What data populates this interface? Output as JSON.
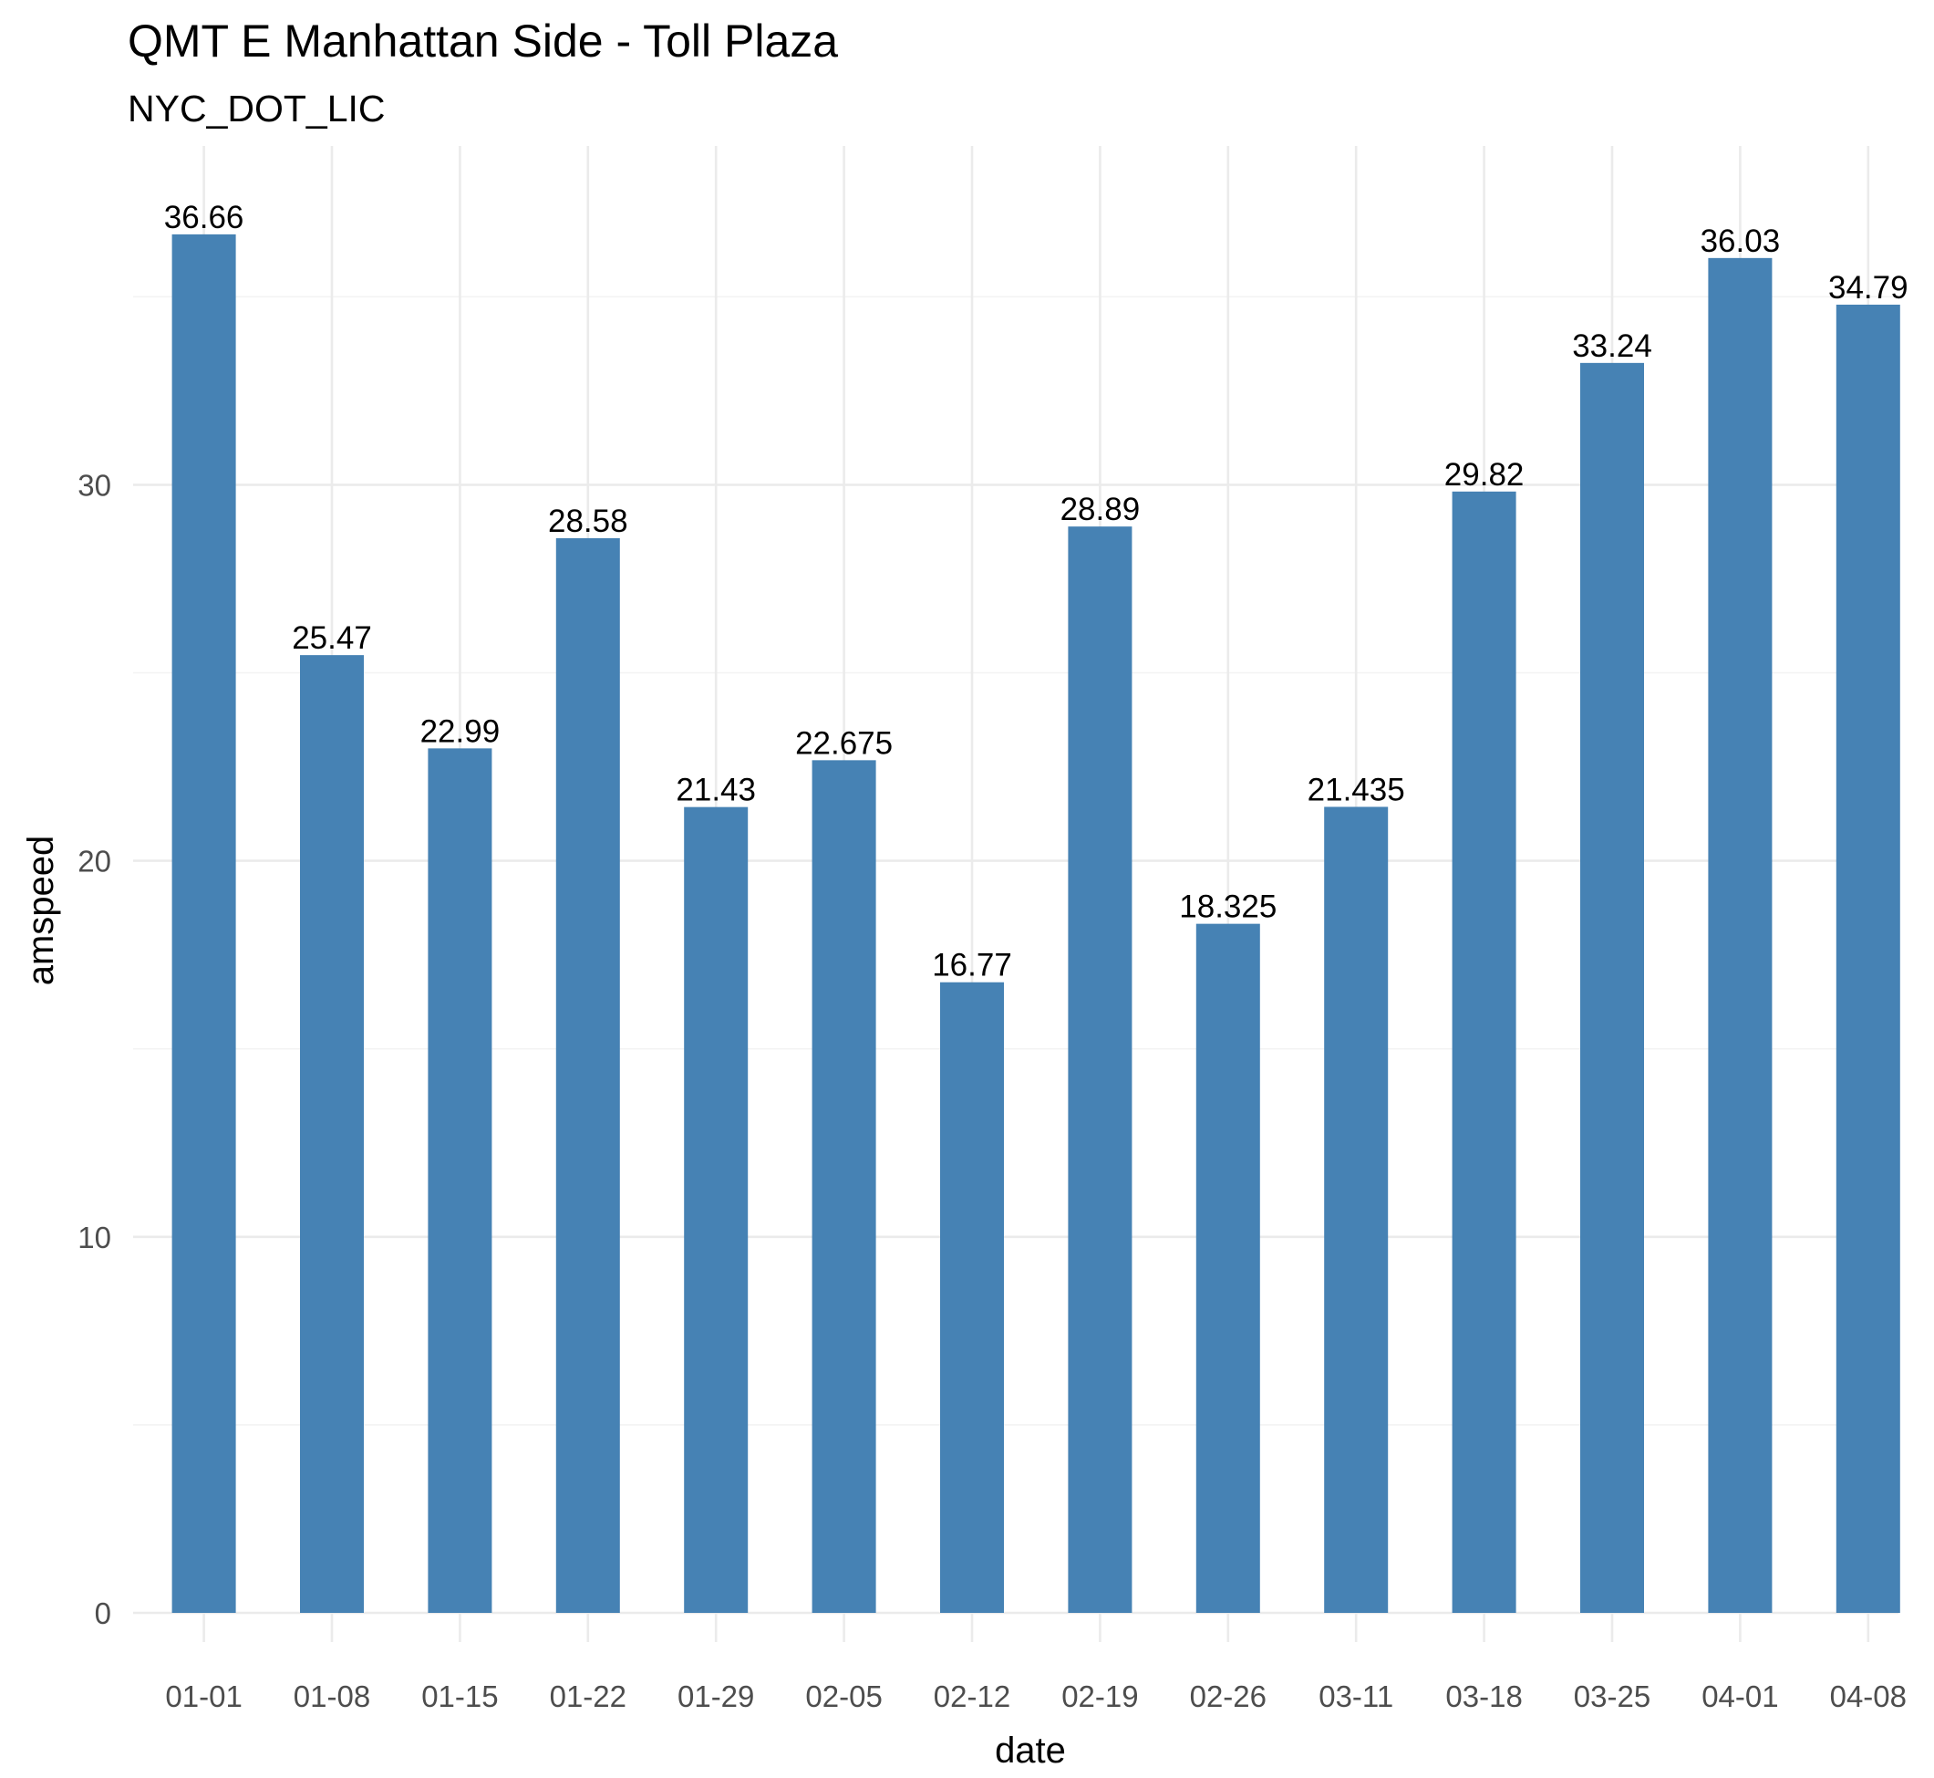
{
  "chart_data": {
    "type": "bar",
    "title": "QMT E Manhattan Side - Toll Plaza",
    "subtitle": "NYC_DOT_LIC",
    "xlabel": "date",
    "ylabel": "amspeed",
    "categories": [
      "01-01",
      "01-08",
      "01-15",
      "01-22",
      "01-29",
      "02-05",
      "02-12",
      "02-19",
      "02-26",
      "03-11",
      "03-18",
      "03-25",
      "04-01",
      "04-08"
    ],
    "values": [
      36.66,
      25.47,
      22.99,
      28.58,
      21.43,
      22.675,
      16.77,
      28.89,
      18.325,
      21.435,
      29.82,
      33.24,
      36.03,
      34.79
    ],
    "value_labels": [
      "36.66",
      "25.47",
      "22.99",
      "28.58",
      "21.43",
      "22.675",
      "16.77",
      "28.89",
      "18.325",
      "21.435",
      "29.82",
      "33.24",
      "36.03",
      "34.79"
    ],
    "ylim": [
      0,
      39
    ],
    "y_ticks": [
      0,
      10,
      20,
      30
    ],
    "y_tick_labels": [
      "0",
      "10",
      "20",
      "30"
    ],
    "grid": true,
    "legend": "none",
    "bar_color": "#4682b4",
    "background_color": "#ffffff",
    "grid_color": "#ebebeb"
  }
}
